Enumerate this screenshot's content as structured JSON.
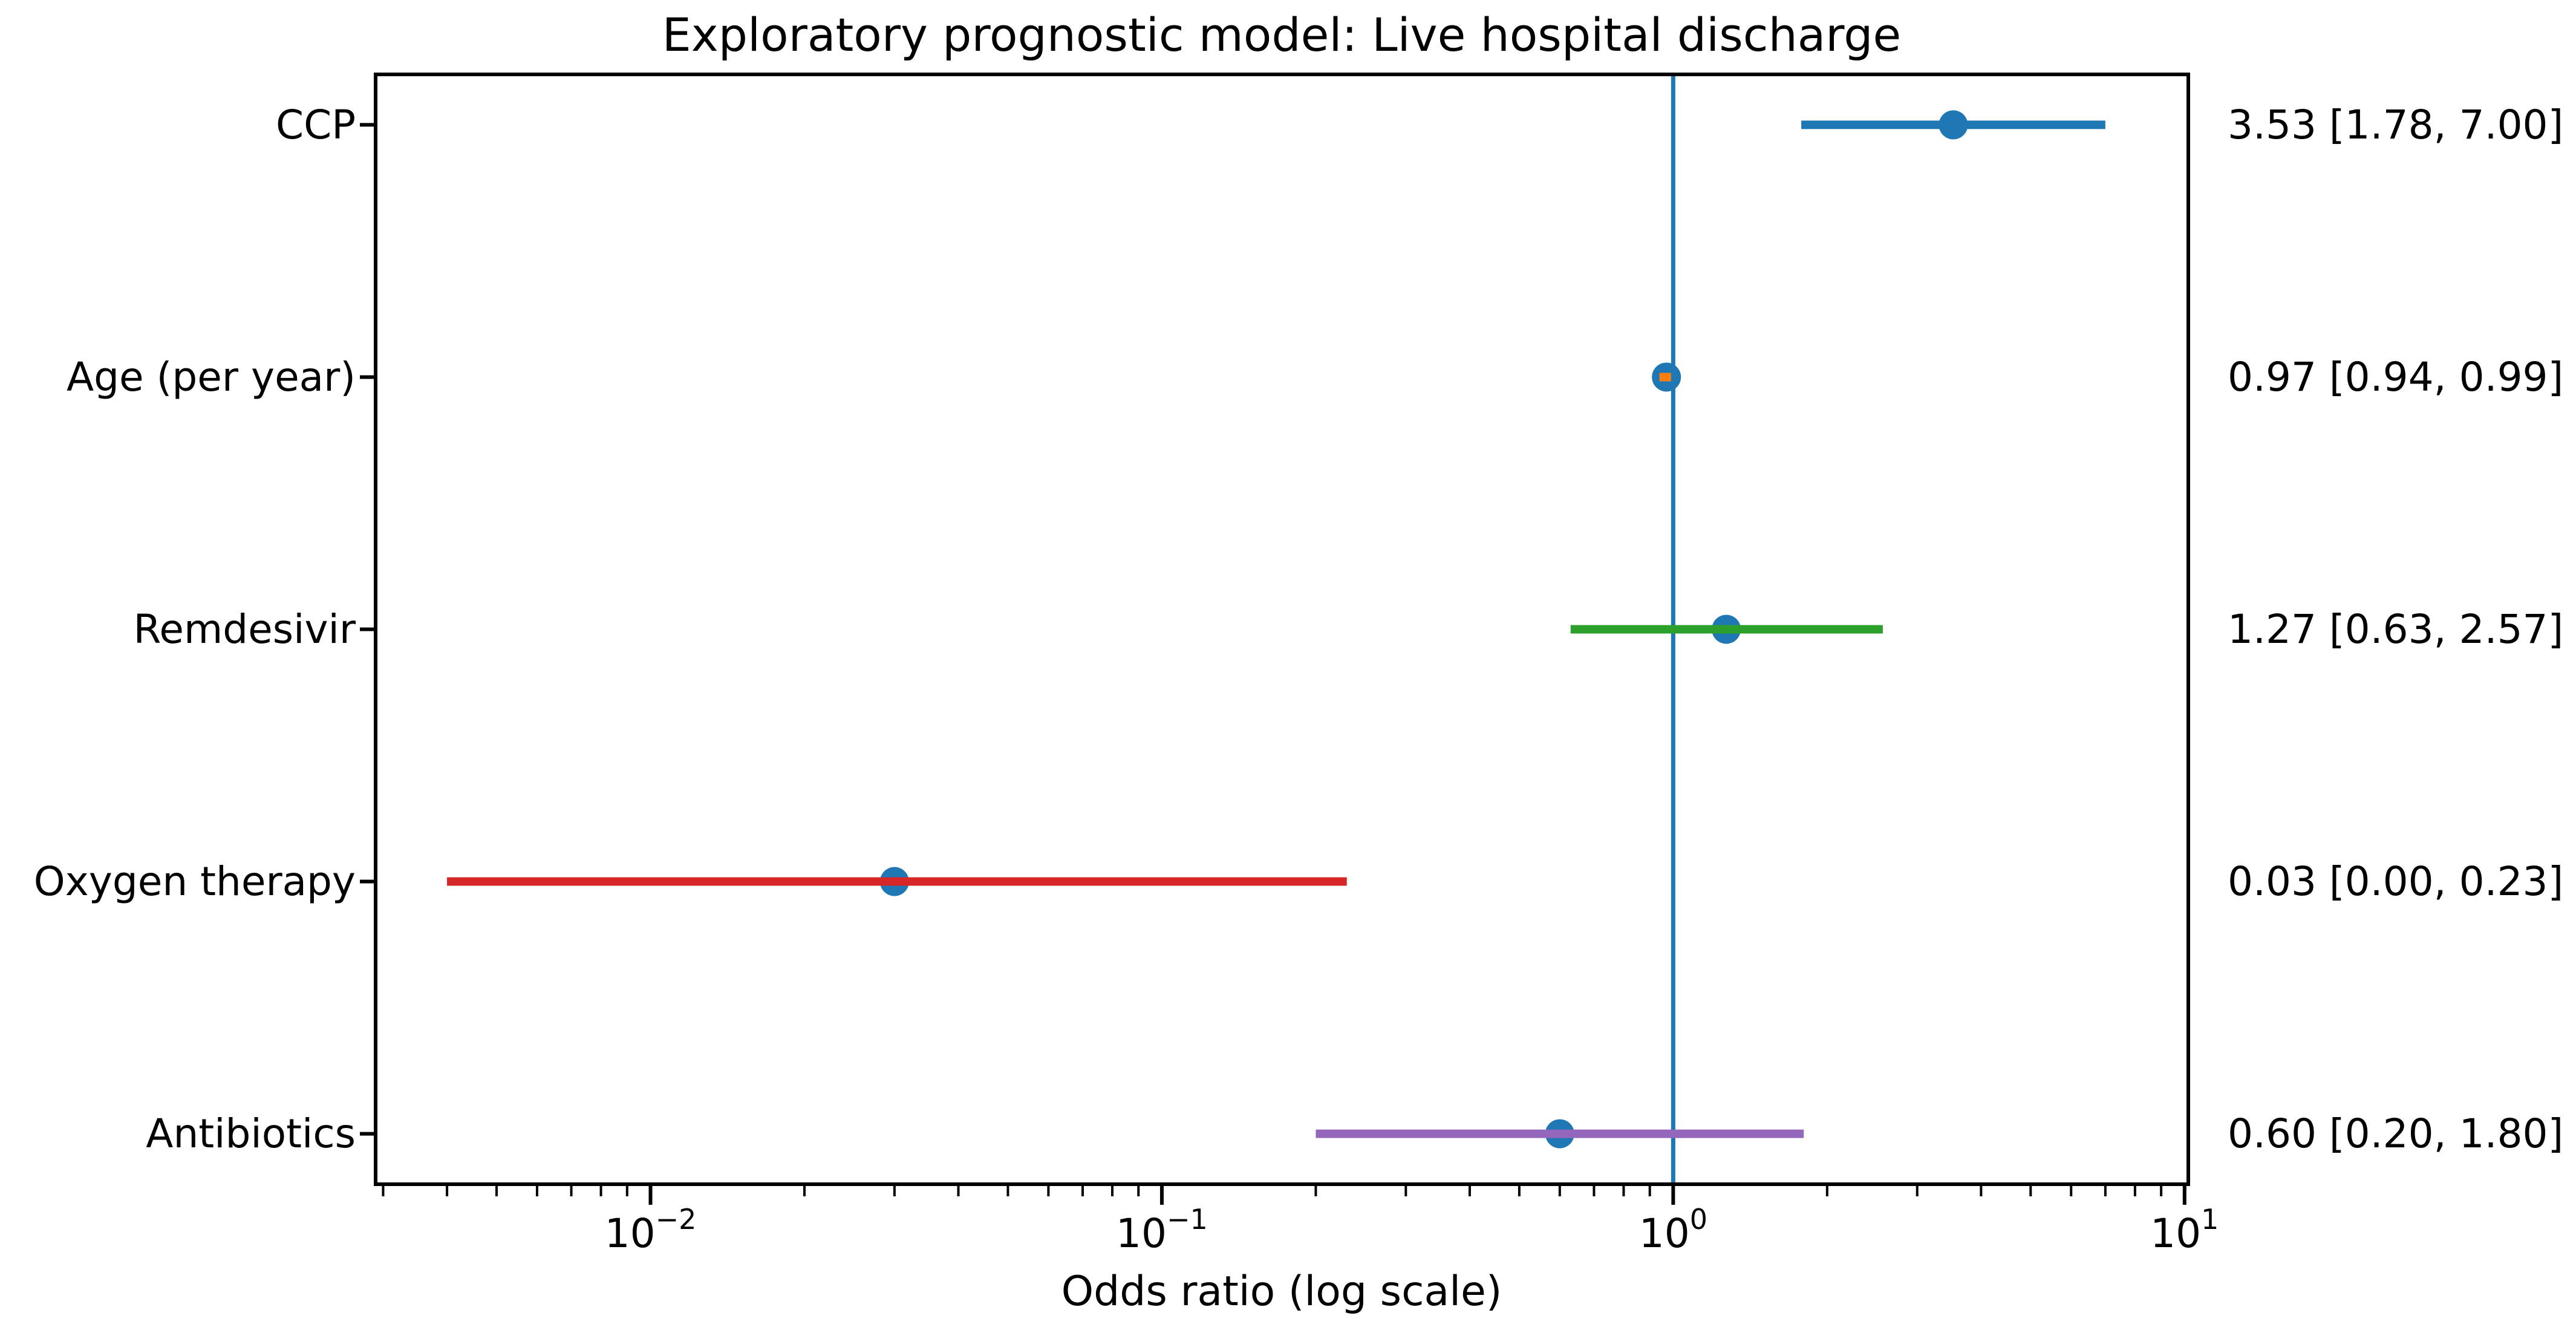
{
  "figure": {
    "background": "#ffffff",
    "frame_color": "#000000",
    "text_color": "#000000"
  },
  "chart_data": {
    "type": "scatter",
    "subtype": "forest-plot",
    "title": "Exploratory prognostic model: Live hospital discharge",
    "xlabel": "Odds ratio (log scale)",
    "ylabel": "",
    "x_scale": "log10",
    "xlim": [
      0.0029,
      10.17
    ],
    "grid": false,
    "legend": "none",
    "x_major_ticks": [
      {
        "value": 0.01,
        "base": "10",
        "exponent": "−2"
      },
      {
        "value": 0.1,
        "base": "10",
        "exponent": "−1"
      },
      {
        "value": 1,
        "base": "10",
        "exponent": "0"
      },
      {
        "value": 10,
        "base": "10",
        "exponent": "1"
      }
    ],
    "reference_line": {
      "value": 1,
      "color": "#1f77b4"
    },
    "marker": {
      "color": "#1f77b4",
      "shape": "circle"
    },
    "categories": [
      "CCP",
      "Age (per year)",
      "Remdesivir",
      "Oxygen therapy",
      "Antibiotics"
    ],
    "rows": [
      {
        "label": "CCP",
        "odds_ratio": 3.53,
        "ci_low": 1.78,
        "ci_high": 7.0,
        "ci_low_plot": 1.78,
        "line_color": "#1f77b4",
        "annotation": "3.53 [1.78, 7.00]"
      },
      {
        "label": "Age (per year)",
        "odds_ratio": 0.97,
        "ci_low": 0.94,
        "ci_high": 0.99,
        "ci_low_plot": 0.94,
        "line_color": "#ff7f0e",
        "annotation": "0.97 [0.94, 0.99]"
      },
      {
        "label": "Remdesivir",
        "odds_ratio": 1.27,
        "ci_low": 0.63,
        "ci_high": 2.57,
        "ci_low_plot": 0.63,
        "line_color": "#2ca02c",
        "annotation": "1.27 [0.63, 2.57]"
      },
      {
        "label": "Oxygen therapy",
        "odds_ratio": 0.03,
        "ci_low": 0.0,
        "ci_high": 0.23,
        "ci_low_plot": 0.004,
        "line_color": "#d62728",
        "annotation": "0.03 [0.00, 0.23]"
      },
      {
        "label": "Antibiotics",
        "odds_ratio": 0.6,
        "ci_low": 0.2,
        "ci_high": 1.8,
        "ci_low_plot": 0.2,
        "line_color": "#9467bd",
        "annotation": "0.60 [0.20, 1.80]"
      }
    ]
  }
}
